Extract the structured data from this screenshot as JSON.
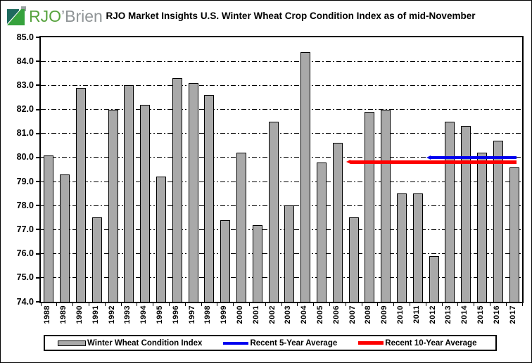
{
  "logo": {
    "brand_green": "RJO",
    "brand_gray": "’Brien"
  },
  "header": {
    "title": "RJO Market Insights U.S. Winter Wheat Crop Condition Index as of mid-November"
  },
  "chart_data": {
    "type": "bar",
    "title": "RJO Market Insights U.S. Winter Wheat Crop Condition Index as of mid-November",
    "series_name": "Winter Wheat Condition Index",
    "categories": [
      "1988",
      "1989",
      "1990",
      "1991",
      "1992",
      "1993",
      "1994",
      "1995",
      "1996",
      "1997",
      "1998",
      "1999",
      "2000",
      "2001",
      "2002",
      "2003",
      "2004",
      "2005",
      "2006",
      "2007",
      "2008",
      "2009",
      "2010",
      "2011",
      "2012",
      "2013",
      "2014",
      "2015",
      "2016",
      "2017"
    ],
    "values": [
      80.1,
      79.3,
      82.9,
      77.5,
      82.0,
      83.0,
      82.2,
      79.2,
      83.3,
      83.1,
      82.6,
      77.4,
      80.2,
      77.2,
      81.5,
      78.0,
      84.4,
      79.8,
      80.6,
      77.5,
      81.9,
      82.0,
      78.5,
      78.5,
      75.9,
      81.5,
      81.3,
      80.2,
      80.7,
      79.6
    ],
    "overlays": [
      {
        "label": "Recent 5-Year Average",
        "value": 80.0,
        "color": "#0000f0",
        "start_category": "2012",
        "end_category": "2017",
        "thickness": 4
      },
      {
        "label": "Recent 10-Year Average",
        "value": 79.8,
        "color": "#fe0000",
        "start_category": "2007",
        "end_category": "2017",
        "thickness": 5
      }
    ],
    "ylim": [
      74.0,
      85.0
    ],
    "ytick_labels": [
      "85.0",
      "84.0",
      "83.0",
      "82.0",
      "81.0",
      "80.0",
      "79.0",
      "78.0",
      "77.0",
      "76.0",
      "75.0",
      "74.0"
    ],
    "grid": "horizontal dash-dot, 1.0 step",
    "bar_color": "#a9a9a9",
    "bar_border_color": "#000000",
    "legend": {
      "position": "bottom",
      "items": [
        {
          "label": "Winter Wheat Condition Index",
          "swatch": "bar",
          "color": "#a9a9a9"
        },
        {
          "label": "Recent 5-Year Average",
          "swatch": "line",
          "color": "#0000f0"
        },
        {
          "label": "Recent 10-Year Average",
          "swatch": "line",
          "color": "#fe0000"
        }
      ]
    }
  }
}
